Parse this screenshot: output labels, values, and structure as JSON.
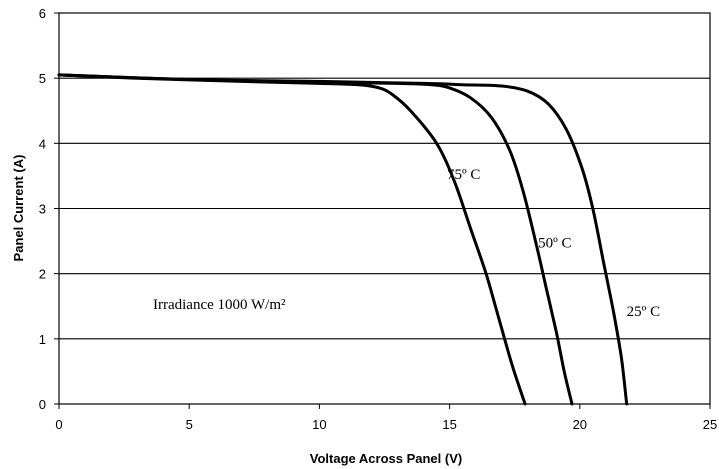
{
  "chart_data": {
    "type": "line",
    "xlabel": "Voltage Across Panel (V)",
    "ylabel": "Panel Current (A)",
    "xlim": [
      0,
      25
    ],
    "ylim": [
      0,
      6
    ],
    "x_ticks": [
      "0",
      "5",
      "10",
      "15",
      "20",
      "25"
    ],
    "y_ticks": [
      "0",
      "1",
      "2",
      "3",
      "4",
      "5",
      "6"
    ],
    "grid": "horizontal",
    "annotation": "Irradiance 1000 W/m²",
    "series": [
      {
        "name": "75º C",
        "points": [
          [
            0,
            5.05
          ],
          [
            3,
            5.0
          ],
          [
            7,
            4.95
          ],
          [
            10,
            4.92
          ],
          [
            11.5,
            4.9
          ],
          [
            12.3,
            4.85
          ],
          [
            12.8,
            4.75
          ],
          [
            13.5,
            4.5
          ],
          [
            14.5,
            4.0
          ],
          [
            15.2,
            3.4
          ],
          [
            15.8,
            2.7
          ],
          [
            16.4,
            2.0
          ],
          [
            16.9,
            1.3
          ],
          [
            17.4,
            0.6
          ],
          [
            17.9,
            0.0
          ]
        ]
      },
      {
        "name": "50º C",
        "points": [
          [
            0,
            5.05
          ],
          [
            5,
            4.98
          ],
          [
            10,
            4.94
          ],
          [
            13,
            4.92
          ],
          [
            14.3,
            4.9
          ],
          [
            15,
            4.85
          ],
          [
            15.8,
            4.7
          ],
          [
            16.6,
            4.4
          ],
          [
            17.3,
            3.9
          ],
          [
            17.8,
            3.3
          ],
          [
            18.3,
            2.5
          ],
          [
            18.7,
            1.8
          ],
          [
            19.1,
            1.1
          ],
          [
            19.4,
            0.5
          ],
          [
            19.7,
            0.0
          ]
        ]
      },
      {
        "name": "25º C",
        "points": [
          [
            0,
            5.05
          ],
          [
            5,
            4.98
          ],
          [
            10,
            4.95
          ],
          [
            14,
            4.92
          ],
          [
            15.5,
            4.9
          ],
          [
            17,
            4.88
          ],
          [
            18,
            4.8
          ],
          [
            18.8,
            4.6
          ],
          [
            19.5,
            4.2
          ],
          [
            20.1,
            3.6
          ],
          [
            20.5,
            3.0
          ],
          [
            20.9,
            2.2
          ],
          [
            21.3,
            1.4
          ],
          [
            21.6,
            0.7
          ],
          [
            21.8,
            0.0
          ]
        ]
      }
    ],
    "labels": [
      {
        "text": "75º C",
        "x": 14.9,
        "y": 3.45
      },
      {
        "text": "50º C",
        "x": 18.4,
        "y": 2.4
      },
      {
        "text": "25º C",
        "x": 21.8,
        "y": 1.35
      }
    ]
  }
}
